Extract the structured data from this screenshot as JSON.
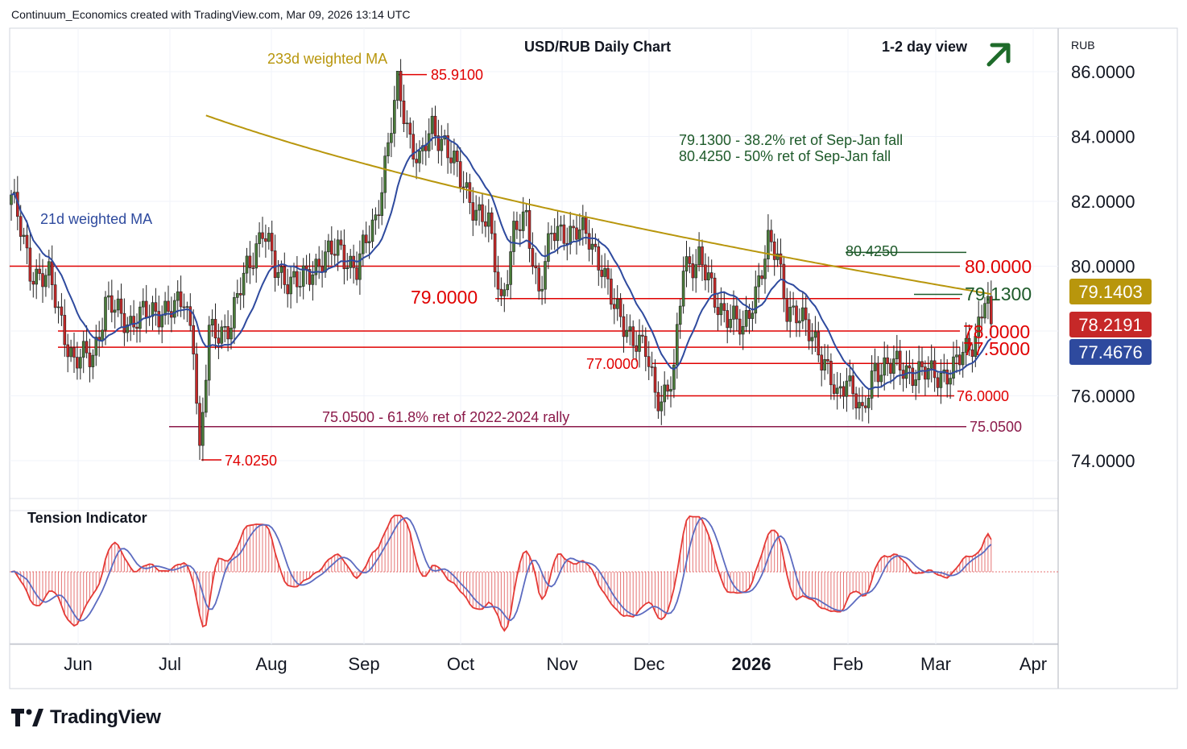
{
  "header": {
    "attribution": "Continuum_Economics created with TradingView.com, Mar 09, 2026 13:14 UTC"
  },
  "chart_title": "USD/RUB Daily Chart",
  "view_label": "1-2 day view",
  "currency_label": "RUB",
  "tension_label": "Tension Indicator",
  "brand": "TradingView",
  "colors": {
    "up_candle": "#4a7c3a",
    "down_candle": "#c62828",
    "ma233": "#b8960c",
    "ma21": "#2e4a9e",
    "level_line": "#e00000",
    "fib_line": "#8b1a4a",
    "arrow": "#1e6b2a",
    "note_text": "#1e5a2a"
  },
  "chart_data": {
    "type": "candlestick",
    "title": "USD/RUB Daily Chart",
    "x_ticks": [
      "Jun",
      "Jul",
      "Aug",
      "Sep",
      "Oct",
      "Nov",
      "Dec",
      "2026",
      "Feb",
      "Mar",
      "Apr"
    ],
    "y_ticks": [
      "86.0000",
      "84.0000",
      "82.0000",
      "80.0000",
      "78.0000",
      "76.0000",
      "74.0000"
    ],
    "y_range": [
      73.0,
      87.1
    ],
    "indicators": {
      "ma233_label": "233d weighted MA",
      "ma21_label": "21d weighted MA"
    },
    "annotations": {
      "high": "85.9100",
      "low": "74.0250",
      "lvl_80": "80.0000",
      "lvl_79": "79.0000",
      "lvl_7913": "79.1300",
      "lvl_78": "78.0000",
      "lvl_775": "77.5000",
      "lvl_77": "77.0000",
      "lvl_76": "76.0000",
      "lvl_7505": "75.0500",
      "lvl_80425": "80.4250",
      "fib_note": "75.0500 - 61.8% ret of 2022-2024 rally",
      "note1": "79.1300 - 38.2% ret of Sep-Jan fall",
      "note2": "80.4250 - 50% ret of Sep-Jan fall"
    },
    "price_badges": [
      {
        "value": "79.1403",
        "color": "#b8960c"
      },
      {
        "value": "78.2191",
        "color": "#c62828"
      },
      {
        "value": "77.4676",
        "color": "#2e4a9e"
      }
    ],
    "price_anchors": [
      [
        0,
        82.2
      ],
      [
        6,
        79.9
      ],
      [
        12,
        79.6
      ],
      [
        20,
        77.0
      ],
      [
        26,
        77.3
      ],
      [
        30,
        78.8
      ],
      [
        38,
        78.3
      ],
      [
        48,
        78.7
      ],
      [
        52,
        78.6
      ],
      [
        55,
        79.0
      ],
      [
        58,
        77.8
      ],
      [
        60,
        74.1
      ],
      [
        63,
        77.9
      ],
      [
        70,
        78.2
      ],
      [
        75,
        80.0
      ],
      [
        80,
        81.1
      ],
      [
        84,
        79.9
      ],
      [
        92,
        79.4
      ],
      [
        98,
        80.2
      ],
      [
        105,
        80.5
      ],
      [
        110,
        79.9
      ],
      [
        116,
        81.5
      ],
      [
        120,
        83.7
      ],
      [
        123,
        85.5
      ],
      [
        127,
        84.0
      ],
      [
        130,
        83.2
      ],
      [
        134,
        84.2
      ],
      [
        138,
        83.9
      ],
      [
        143,
        82.6
      ],
      [
        148,
        81.8
      ],
      [
        152,
        81.2
      ],
      [
        156,
        78.9
      ],
      [
        160,
        81.0
      ],
      [
        164,
        81.4
      ],
      [
        168,
        79.3
      ],
      [
        172,
        80.9
      ],
      [
        176,
        81.1
      ],
      [
        180,
        81.1
      ],
      [
        184,
        80.8
      ],
      [
        188,
        80.1
      ],
      [
        192,
        78.6
      ],
      [
        197,
        78.0
      ],
      [
        202,
        77.3
      ],
      [
        205,
        76.1
      ],
      [
        207,
        76.0
      ],
      [
        211,
        76.6
      ],
      [
        214,
        80.0
      ],
      [
        219,
        80.3
      ],
      [
        224,
        78.9
      ],
      [
        229,
        78.5
      ],
      [
        233,
        77.9
      ],
      [
        236,
        79.0
      ],
      [
        241,
        80.6
      ],
      [
        244,
        80.3
      ],
      [
        247,
        78.8
      ],
      [
        252,
        78.2
      ],
      [
        256,
        77.8
      ],
      [
        259,
        77.0
      ],
      [
        263,
        75.8
      ],
      [
        266,
        76.7
      ],
      [
        269,
        76.0
      ],
      [
        271,
        75.2
      ],
      [
        275,
        76.9
      ],
      [
        279,
        77.0
      ],
      [
        283,
        76.8
      ],
      [
        288,
        76.8
      ],
      [
        293,
        76.6
      ],
      [
        296,
        76.7
      ],
      [
        300,
        76.8
      ],
      [
        304,
        77.4
      ],
      [
        307,
        77.9
      ],
      [
        310,
        79.0
      ],
      [
        312,
        78.22
      ]
    ]
  }
}
